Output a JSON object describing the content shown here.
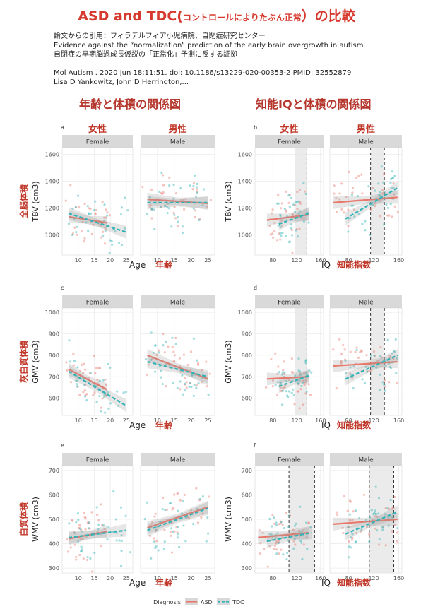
{
  "header": {
    "title_main": "ASD and TDC(",
    "title_small": "コントロールによりたぶん正常",
    "title_end": "）の比較",
    "quote_line": "論文からの引用：フィラデルフィア小児病院、自閉症研究センター",
    "paper_title": "Evidence against the “normalization” prediction of the early brain overgrowth in autism",
    "paper_title_ja": "自閉症の早期脳過成長仮説の「正常化」予測に反する証拠",
    "citation": "Mol Autism . 2020 Jun 18;11:51. doi: 10.1186/s13229-020-00353-2    PMID: 32552879",
    "authors": "Lisa D Yankowitz, John D Herrington,..."
  },
  "sections": {
    "left_title": "年齢と体積の関係図",
    "right_title": "知能IQと体積の関係図"
  },
  "labels": {
    "female_ja": "女性",
    "male_ja": "男性",
    "female_strip": "Female",
    "male_strip": "Male",
    "age_en": "Age",
    "age_ja": "年齢",
    "iq_en": "IQ",
    "iq_ja": "知能指数"
  },
  "legend": {
    "title": "Diagnosis",
    "asd": "ASD",
    "tdc": "TDC"
  },
  "colors": {
    "asd": "#e8786c",
    "tdc": "#2fb3b6",
    "strip": "#d9d9d9",
    "panel": "#ffffff",
    "grid": "#ebebeb",
    "annotation": "#c0392b"
  },
  "chart_data": [
    {
      "type": "scatter",
      "panel": "a",
      "row_label_ja": "全脳体積",
      "ylabel": "TBV (cm3)",
      "xlabel": "Age",
      "ylim": [
        850,
        1650
      ],
      "yticks": [
        1000,
        1200,
        1400,
        1600
      ],
      "facets": [
        {
          "name": "Female",
          "xlim": [
            5,
            27
          ],
          "xticks": [
            10,
            15,
            20,
            25
          ],
          "series": [
            {
              "name": "ASD",
              "line": [
                [
                  7,
                  1135
                ],
                [
                  19,
                  1090
                ]
              ]
            },
            {
              "name": "TDC",
              "line": [
                [
                  7,
                  1160
                ],
                [
                  25,
                  1020
                ]
              ]
            }
          ]
        },
        {
          "name": "Male",
          "xlim": [
            5,
            27
          ],
          "xticks": [
            10,
            15,
            20,
            25
          ],
          "series": [
            {
              "name": "ASD",
              "line": [
                [
                  7,
                  1265
                ],
                [
                  25,
                  1235
                ]
              ]
            },
            {
              "name": "TDC",
              "line": [
                [
                  7,
                  1240
                ],
                [
                  25,
                  1240
                ]
              ]
            }
          ]
        }
      ]
    },
    {
      "type": "scatter",
      "panel": "b",
      "ylabel": "TBV (cm3)",
      "xlabel": "IQ",
      "ylim": [
        850,
        1650
      ],
      "yticks": [
        1000,
        1200,
        1400,
        1600
      ],
      "facets": [
        {
          "name": "Female",
          "xlim": [
            50,
            165
          ],
          "xticks": [
            80,
            120,
            160
          ],
          "vlines": [
            117,
            137
          ],
          "shade": [
            117,
            137
          ],
          "series": [
            {
              "name": "ASD",
              "line": [
                [
                  70,
                  1110
                ],
                [
                  140,
                  1150
                ]
              ]
            },
            {
              "name": "TDC",
              "line": [
                [
                  90,
                  1080
                ],
                [
                  140,
                  1160
                ]
              ]
            }
          ]
        },
        {
          "name": "Male",
          "xlim": [
            50,
            165
          ],
          "xticks": [
            80,
            120,
            160
          ],
          "vlines": [
            115,
            137
          ],
          "shade": [
            115,
            137
          ],
          "series": [
            {
              "name": "ASD",
              "line": [
                [
                  55,
                  1240
                ],
                [
                  158,
                  1280
                ]
              ]
            },
            {
              "name": "TDC",
              "line": [
                [
                  75,
                  1120
                ],
                [
                  158,
                  1350
                ]
              ]
            }
          ]
        }
      ]
    },
    {
      "type": "scatter",
      "panel": "c",
      "row_label_ja": "灰白質体積",
      "ylabel": "GMV (cm3)",
      "xlabel": "Age",
      "ylim": [
        520,
        1020
      ],
      "yticks": [
        600,
        700,
        800,
        900,
        1000
      ],
      "facets": [
        {
          "name": "Female",
          "xlim": [
            5,
            27
          ],
          "xticks": [
            10,
            15,
            20,
            25
          ],
          "series": [
            {
              "name": "ASD",
              "line": [
                [
                  7,
                  735
                ],
                [
                  19,
                  640
                ]
              ]
            },
            {
              "name": "TDC",
              "line": [
                [
                  7,
                  725
                ],
                [
                  25,
                  565
                ]
              ]
            }
          ]
        },
        {
          "name": "Male",
          "xlim": [
            5,
            27
          ],
          "xticks": [
            10,
            15,
            20,
            25
          ],
          "series": [
            {
              "name": "ASD",
              "line": [
                [
                  7,
                  800
                ],
                [
                  25,
                  690
                ]
              ]
            },
            {
              "name": "TDC",
              "line": [
                [
                  7,
                  770
                ],
                [
                  25,
                  700
                ]
              ]
            }
          ]
        }
      ]
    },
    {
      "type": "scatter",
      "panel": "d",
      "ylabel": "GMV (cm3)",
      "xlabel": "IQ",
      "ylim": [
        520,
        1020
      ],
      "yticks": [
        600,
        700,
        800,
        900,
        1000
      ],
      "facets": [
        {
          "name": "Female",
          "xlim": [
            50,
            165
          ],
          "xticks": [
            80,
            120,
            160
          ],
          "vlines": [
            117,
            137
          ],
          "shade": [
            117,
            137
          ],
          "series": [
            {
              "name": "ASD",
              "line": [
                [
                  70,
                  690
                ],
                [
                  140,
                  700
                ]
              ]
            },
            {
              "name": "TDC",
              "line": [
                [
                  90,
                  655
                ],
                [
                  140,
                  705
                ]
              ]
            }
          ]
        },
        {
          "name": "Male",
          "xlim": [
            50,
            165
          ],
          "xticks": [
            80,
            120,
            160
          ],
          "vlines": [
            115,
            137
          ],
          "shade": [
            115,
            137
          ],
          "series": [
            {
              "name": "ASD",
              "line": [
                [
                  55,
                  750
                ],
                [
                  158,
                  770
                ]
              ]
            },
            {
              "name": "TDC",
              "line": [
                [
                  75,
                  690
                ],
                [
                  158,
                  800
                ]
              ]
            }
          ]
        }
      ]
    },
    {
      "type": "scatter",
      "panel": "e",
      "row_label_ja": "白質体積",
      "ylabel": "WMV (cm3)",
      "xlabel": "Age",
      "ylim": [
        280,
        720
      ],
      "yticks": [
        300,
        400,
        500,
        600,
        700
      ],
      "facets": [
        {
          "name": "Female",
          "xlim": [
            5,
            27
          ],
          "xticks": [
            10,
            15,
            20,
            25
          ],
          "series": [
            {
              "name": "ASD",
              "line": [
                [
                  7,
                  420
                ],
                [
                  19,
                  450
                ]
              ]
            },
            {
              "name": "TDC",
              "line": [
                [
                  7,
                  425
                ],
                [
                  25,
                  455
                ]
              ]
            }
          ]
        },
        {
          "name": "Male",
          "xlim": [
            5,
            27
          ],
          "xticks": [
            10,
            15,
            20,
            25
          ],
          "series": [
            {
              "name": "ASD",
              "line": [
                [
                  7,
                  465
                ],
                [
                  25,
                  550
                ]
              ]
            },
            {
              "name": "TDC",
              "line": [
                [
                  7,
                  455
                ],
                [
                  25,
                  545
                ]
              ]
            }
          ]
        }
      ]
    },
    {
      "type": "scatter",
      "panel": "f",
      "ylabel": "WMV (cm3)",
      "xlabel": "IQ",
      "ylim": [
        280,
        720
      ],
      "yticks": [
        300,
        400,
        500,
        600,
        700
      ],
      "facets": [
        {
          "name": "Female",
          "xlim": [
            50,
            165
          ],
          "xticks": [
            80,
            120,
            160
          ],
          "vlines": [
            107,
            150
          ],
          "shade": [
            107,
            150
          ],
          "series": [
            {
              "name": "ASD",
              "line": [
                [
                  55,
                  425
                ],
                [
                  140,
                  445
                ]
              ]
            },
            {
              "name": "TDC",
              "line": [
                [
                  70,
                  410
                ],
                [
                  145,
                  445
                ]
              ]
            }
          ]
        },
        {
          "name": "Male",
          "xlim": [
            50,
            165
          ],
          "xticks": [
            80,
            120,
            160
          ],
          "vlines": [
            113,
            152
          ],
          "shade": [
            113,
            152
          ],
          "series": [
            {
              "name": "ASD",
              "line": [
                [
                  55,
                  480
                ],
                [
                  158,
                  500
                ]
              ]
            },
            {
              "name": "TDC",
              "line": [
                [
                  75,
                  440
                ],
                [
                  158,
                  530
                ]
              ]
            }
          ]
        }
      ]
    }
  ]
}
